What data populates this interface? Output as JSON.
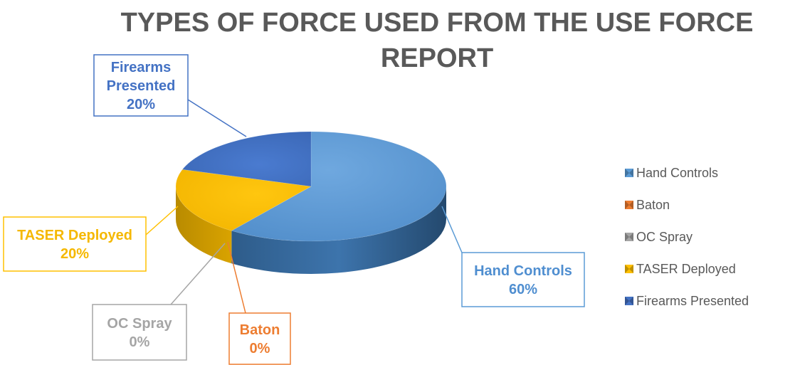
{
  "chart_data": {
    "type": "pie",
    "title_lines": [
      "TYPES OF FORCE USED FROM THE USE FORCE",
      "REPORT"
    ],
    "slices": [
      {
        "label": "Hand Controls",
        "value": 60,
        "percent_label": "60%",
        "color": "#5B9BD5"
      },
      {
        "label": "Baton",
        "value": 0,
        "percent_label": "0%",
        "color": "#ED7D31"
      },
      {
        "label": "OC Spray",
        "value": 0,
        "percent_label": "0%",
        "color": "#A5A5A5"
      },
      {
        "label": "TASER Deployed",
        "value": 20,
        "percent_label": "20%",
        "color": "#FFC000"
      },
      {
        "label": "Firearms Presented",
        "value": 20,
        "percent_label": "20%",
        "color": "#4472C4"
      }
    ],
    "legend_position": "right",
    "style": "3d-pie"
  }
}
